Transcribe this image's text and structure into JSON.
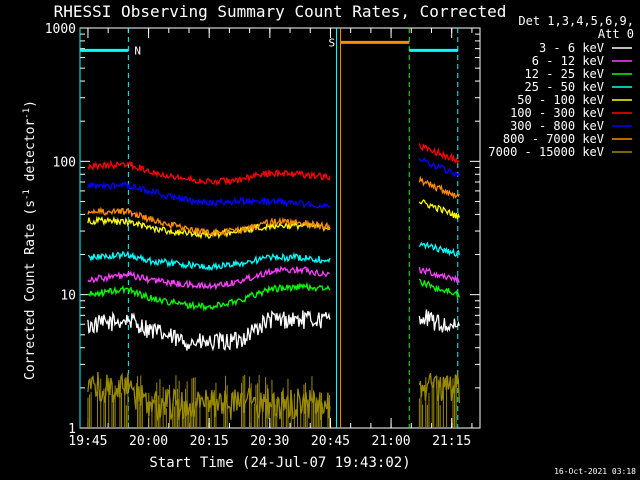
{
  "chart_data": {
    "type": "line",
    "title": "RHESSI Observing Summary Count Rates, Corrected",
    "xlabel": "Start Time (24-Jul-07 19:43:02)",
    "ylabel": "Corrected Count Rate (s⁻¹ detector⁻¹)",
    "ylabel_main": "Corrected Count Rate (s",
    "ylabel_sup1": "-1",
    "ylabel_mid": " detector",
    "ylabel_sup2": "-1",
    "ylabel_end": ")",
    "yscale": "log",
    "ylim": [
      1,
      1000
    ],
    "xlim": [
      "19:43:02",
      "21:22:00"
    ],
    "x_ticks": [
      "19:45",
      "20:00",
      "20:15",
      "20:30",
      "20:45",
      "21:00",
      "21:15"
    ],
    "y_ticks": [
      "1",
      "10",
      "100",
      "1000"
    ],
    "timestamp": "16-Oct-2021 03:18",
    "legend": {
      "placement": "right",
      "header1": "Det 1,3,4,5,6,9,",
      "header2": "Att 0"
    },
    "series": [
      {
        "name": "3 - 6 keV",
        "color": "#ffffff",
        "segments": [
          {
            "x": [
              "19:45",
              "19:55",
              "20:00",
              "20:08",
              "20:15",
              "20:22",
              "20:30",
              "20:38",
              "20:45"
            ],
            "y": [
              5.8,
              6.5,
              5.5,
              4.5,
              4.3,
              4.5,
              6.5,
              6.5,
              6.5
            ]
          },
          {
            "x": [
              "21:07",
              "21:12",
              "21:17"
            ],
            "y": [
              7.0,
              6.0,
              5.5
            ]
          }
        ]
      },
      {
        "name": "6 - 12 keV",
        "color": "#ff3fff",
        "segments": [
          {
            "x": [
              "19:45",
              "19:55",
              "20:00",
              "20:08",
              "20:15",
              "20:22",
              "20:30",
              "20:38",
              "20:45"
            ],
            "y": [
              13.0,
              14.0,
              13.0,
              12.0,
              11.5,
              12.5,
              15.0,
              15.5,
              14.0
            ]
          },
          {
            "x": [
              "21:07",
              "21:12",
              "21:17"
            ],
            "y": [
              15.5,
              14.0,
              13.0
            ]
          }
        ]
      },
      {
        "name": "12 - 25 keV",
        "color": "#00ff00",
        "segments": [
          {
            "x": [
              "19:45",
              "19:55",
              "20:00",
              "20:08",
              "20:15",
              "20:22",
              "20:30",
              "20:38",
              "20:45"
            ],
            "y": [
              10.0,
              11.0,
              9.5,
              8.5,
              8.0,
              9.0,
              11.0,
              11.5,
              11.0
            ]
          },
          {
            "x": [
              "21:07",
              "21:12",
              "21:17"
            ],
            "y": [
              12.5,
              11.0,
              10.0
            ]
          }
        ]
      },
      {
        "name": "25 - 50 keV",
        "color": "#00ffff",
        "segments": [
          {
            "x": [
              "19:45",
              "19:55",
              "20:00",
              "20:08",
              "20:15",
              "20:22",
              "20:30",
              "20:38",
              "20:45"
            ],
            "y": [
              19.0,
              20.0,
              18.0,
              17.0,
              16.0,
              17.0,
              19.0,
              19.0,
              18.0
            ]
          },
          {
            "x": [
              "21:07",
              "21:12",
              "21:17"
            ],
            "y": [
              24.0,
              22.0,
              20.0
            ]
          }
        ]
      },
      {
        "name": "50 - 100 keV",
        "color": "#ffff00",
        "segments": [
          {
            "x": [
              "19:45",
              "19:55",
              "20:00",
              "20:08",
              "20:15",
              "20:22",
              "20:30",
              "20:38",
              "20:45"
            ],
            "y": [
              36.0,
              35.0,
              32.0,
              29.0,
              28.0,
              30.0,
              33.0,
              33.0,
              32.0
            ]
          },
          {
            "x": [
              "21:07",
              "21:12",
              "21:17"
            ],
            "y": [
              50.0,
              44.0,
              38.0
            ]
          }
        ]
      },
      {
        "name": "100 - 300 keV",
        "color": "#ff0000",
        "segments": [
          {
            "x": [
              "19:45",
              "19:55",
              "20:00",
              "20:08",
              "20:15",
              "20:22",
              "20:30",
              "20:38",
              "20:45"
            ],
            "y": [
              92.0,
              95.0,
              85.0,
              75.0,
              70.0,
              72.0,
              82.0,
              80.0,
              76.0
            ]
          },
          {
            "x": [
              "21:07",
              "21:12",
              "21:17"
            ],
            "y": [
              130.0,
              115.0,
              100.0
            ]
          }
        ]
      },
      {
        "name": "300 - 800 keV",
        "color": "#0000ff",
        "segments": [
          {
            "x": [
              "19:45",
              "19:55",
              "20:00",
              "20:08",
              "20:15",
              "20:22",
              "20:30",
              "20:38",
              "20:45"
            ],
            "y": [
              65.0,
              66.0,
              60.0,
              52.0,
              48.0,
              50.0,
              50.0,
              48.0,
              46.0
            ]
          },
          {
            "x": [
              "21:07",
              "21:12",
              "21:17"
            ],
            "y": [
              105.0,
              90.0,
              78.0
            ]
          }
        ]
      },
      {
        "name": "800 - 7000 keV",
        "color": "#ff8c00",
        "segments": [
          {
            "x": [
              "19:45",
              "19:55",
              "20:00",
              "20:08",
              "20:15",
              "20:22",
              "20:30",
              "20:38",
              "20:45"
            ],
            "y": [
              42.0,
              42.0,
              37.0,
              32.0,
              29.0,
              30.0,
              35.0,
              35.0,
              32.0
            ]
          },
          {
            "x": [
              "21:07",
              "21:12",
              "21:17"
            ],
            "y": [
              72.0,
              62.0,
              54.0
            ]
          }
        ]
      },
      {
        "name": "7000 - 15000 keV",
        "color": "#9a8a00",
        "segments": [
          {
            "x": [
              "19:45",
              "19:55",
              "20:00",
              "20:08",
              "20:15",
              "20:22",
              "20:30",
              "20:38",
              "20:45"
            ],
            "y": [
              2.0,
              2.0,
              1.5,
              1.5,
              1.5,
              1.5,
              1.5,
              1.5,
              1.5
            ]
          },
          {
            "x": [
              "21:07",
              "21:12",
              "21:17"
            ],
            "y": [
              2.0,
              2.0,
              2.0
            ]
          }
        ]
      }
    ],
    "flags": [
      {
        "label": "N",
        "color": "#00ffff",
        "level": 680,
        "start": "19:43:02",
        "end": "19:55:00"
      },
      {
        "label": "S",
        "color": "#ff8c00",
        "level": 780,
        "start": "20:47:30",
        "end": "21:04:30"
      },
      {
        "label": "",
        "color": "#00ffff",
        "level": 680,
        "start": "21:04:30",
        "end": "21:16:30"
      }
    ],
    "vertical_markers": [
      {
        "x": "19:43:02",
        "color": "#00ffff",
        "style": "solid"
      },
      {
        "x": "19:55:00",
        "color": "#00ffff",
        "style": "dashed"
      },
      {
        "x": "20:46:30",
        "color": "#00ffff",
        "style": "solid"
      },
      {
        "x": "20:47:30",
        "color": "#ff8c00",
        "style": "solid"
      },
      {
        "x": "21:04:30",
        "color": "#00ff00",
        "style": "dashed"
      },
      {
        "x": "21:16:30",
        "color": "#00ffff",
        "style": "dashed"
      }
    ]
  }
}
